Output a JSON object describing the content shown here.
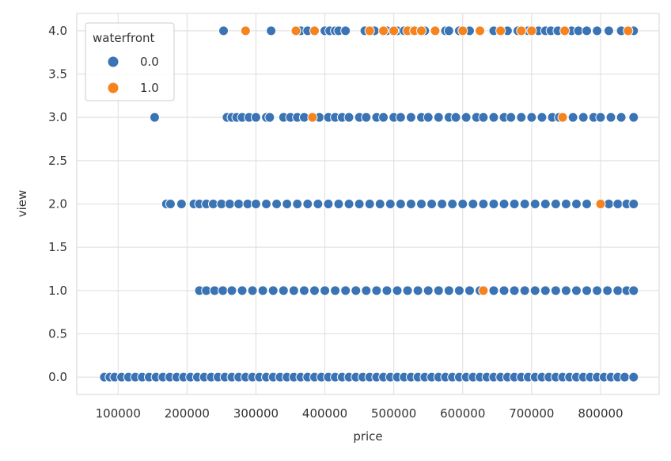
{
  "chart_data": {
    "type": "scatter",
    "title": "",
    "xlabel": "price",
    "ylabel": "view",
    "xlim": [
      40000,
      885000
    ],
    "ylim": [
      -0.2,
      4.2
    ],
    "x_ticks": [
      "100000",
      "200000",
      "300000",
      "400000",
      "500000",
      "600000",
      "700000",
      "800000"
    ],
    "y_ticks": [
      "0.0",
      "0.5",
      "1.0",
      "1.5",
      "2.0",
      "2.5",
      "3.0",
      "3.5",
      "4.0"
    ],
    "grid": true,
    "legend": {
      "title": "waterfront",
      "placement": "top-left",
      "entries": [
        "0.0",
        "1.0"
      ]
    },
    "colors": {
      "0.0": "#3a74b4",
      "1.0": "#f5841f"
    },
    "series": [
      {
        "name": "0.0",
        "points": [
          [
            253000,
            4
          ],
          [
            322000,
            4
          ],
          [
            365000,
            4
          ],
          [
            375000,
            4
          ],
          [
            400000,
            4
          ],
          [
            407000,
            4
          ],
          [
            415000,
            4
          ],
          [
            420000,
            4
          ],
          [
            430000,
            4
          ],
          [
            458000,
            4
          ],
          [
            472000,
            4
          ],
          [
            490000,
            4
          ],
          [
            505000,
            4
          ],
          [
            515000,
            4
          ],
          [
            525000,
            4
          ],
          [
            545000,
            4
          ],
          [
            575000,
            4
          ],
          [
            580000,
            4
          ],
          [
            595000,
            4
          ],
          [
            610000,
            4
          ],
          [
            645000,
            4
          ],
          [
            665000,
            4
          ],
          [
            680000,
            4
          ],
          [
            695000,
            4
          ],
          [
            710000,
            4
          ],
          [
            720000,
            4
          ],
          [
            728000,
            4
          ],
          [
            738000,
            4
          ],
          [
            758000,
            4
          ],
          [
            768000,
            4
          ],
          [
            780000,
            4
          ],
          [
            795000,
            4
          ],
          [
            812000,
            4
          ],
          [
            830000,
            4
          ],
          [
            848000,
            4
          ],
          [
            153000,
            3
          ],
          [
            258000,
            3
          ],
          [
            265000,
            3
          ],
          [
            272000,
            3
          ],
          [
            280000,
            3
          ],
          [
            290000,
            3
          ],
          [
            300000,
            3
          ],
          [
            315000,
            3
          ],
          [
            320000,
            3
          ],
          [
            340000,
            3
          ],
          [
            350000,
            3
          ],
          [
            360000,
            3
          ],
          [
            370000,
            3
          ],
          [
            392000,
            3
          ],
          [
            405000,
            3
          ],
          [
            415000,
            3
          ],
          [
            425000,
            3
          ],
          [
            435000,
            3
          ],
          [
            450000,
            3
          ],
          [
            460000,
            3
          ],
          [
            475000,
            3
          ],
          [
            485000,
            3
          ],
          [
            500000,
            3
          ],
          [
            510000,
            3
          ],
          [
            525000,
            3
          ],
          [
            540000,
            3
          ],
          [
            550000,
            3
          ],
          [
            565000,
            3
          ],
          [
            580000,
            3
          ],
          [
            590000,
            3
          ],
          [
            605000,
            3
          ],
          [
            620000,
            3
          ],
          [
            630000,
            3
          ],
          [
            645000,
            3
          ],
          [
            660000,
            3
          ],
          [
            670000,
            3
          ],
          [
            685000,
            3
          ],
          [
            700000,
            3
          ],
          [
            715000,
            3
          ],
          [
            730000,
            3
          ],
          [
            740000,
            3
          ],
          [
            760000,
            3
          ],
          [
            775000,
            3
          ],
          [
            790000,
            3
          ],
          [
            800000,
            3
          ],
          [
            815000,
            3
          ],
          [
            830000,
            3
          ],
          [
            848000,
            3
          ],
          [
            170000,
            2
          ],
          [
            176000,
            2
          ],
          [
            192000,
            2
          ],
          [
            210000,
            2
          ],
          [
            218000,
            2
          ],
          [
            228000,
            2
          ],
          [
            238000,
            2
          ],
          [
            250000,
            2
          ],
          [
            262000,
            2
          ],
          [
            275000,
            2
          ],
          [
            288000,
            2
          ],
          [
            300000,
            2
          ],
          [
            315000,
            2
          ],
          [
            330000,
            2
          ],
          [
            345000,
            2
          ],
          [
            360000,
            2
          ],
          [
            375000,
            2
          ],
          [
            390000,
            2
          ],
          [
            405000,
            2
          ],
          [
            420000,
            2
          ],
          [
            435000,
            2
          ],
          [
            450000,
            2
          ],
          [
            465000,
            2
          ],
          [
            480000,
            2
          ],
          [
            495000,
            2
          ],
          [
            510000,
            2
          ],
          [
            525000,
            2
          ],
          [
            540000,
            2
          ],
          [
            555000,
            2
          ],
          [
            570000,
            2
          ],
          [
            585000,
            2
          ],
          [
            600000,
            2
          ],
          [
            615000,
            2
          ],
          [
            630000,
            2
          ],
          [
            645000,
            2
          ],
          [
            660000,
            2
          ],
          [
            675000,
            2
          ],
          [
            690000,
            2
          ],
          [
            705000,
            2
          ],
          [
            720000,
            2
          ],
          [
            735000,
            2
          ],
          [
            750000,
            2
          ],
          [
            765000,
            2
          ],
          [
            780000,
            2
          ],
          [
            812000,
            2
          ],
          [
            825000,
            2
          ],
          [
            838000,
            2
          ],
          [
            848000,
            2
          ],
          [
            218000,
            1
          ],
          [
            228000,
            1
          ],
          [
            240000,
            1
          ],
          [
            252000,
            1
          ],
          [
            265000,
            1
          ],
          [
            280000,
            1
          ],
          [
            295000,
            1
          ],
          [
            310000,
            1
          ],
          [
            325000,
            1
          ],
          [
            340000,
            1
          ],
          [
            355000,
            1
          ],
          [
            370000,
            1
          ],
          [
            385000,
            1
          ],
          [
            400000,
            1
          ],
          [
            415000,
            1
          ],
          [
            430000,
            1
          ],
          [
            445000,
            1
          ],
          [
            460000,
            1
          ],
          [
            475000,
            1
          ],
          [
            490000,
            1
          ],
          [
            505000,
            1
          ],
          [
            520000,
            1
          ],
          [
            535000,
            1
          ],
          [
            550000,
            1
          ],
          [
            565000,
            1
          ],
          [
            580000,
            1
          ],
          [
            595000,
            1
          ],
          [
            610000,
            1
          ],
          [
            625000,
            1
          ],
          [
            645000,
            1
          ],
          [
            660000,
            1
          ],
          [
            675000,
            1
          ],
          [
            690000,
            1
          ],
          [
            705000,
            1
          ],
          [
            720000,
            1
          ],
          [
            735000,
            1
          ],
          [
            750000,
            1
          ],
          [
            765000,
            1
          ],
          [
            780000,
            1
          ],
          [
            795000,
            1
          ],
          [
            810000,
            1
          ],
          [
            825000,
            1
          ],
          [
            838000,
            1
          ],
          [
            848000,
            1
          ],
          [
            80000,
            0
          ],
          [
            88000,
            0
          ],
          [
            95000,
            0
          ],
          [
            105000,
            0
          ],
          [
            115000,
            0
          ],
          [
            125000,
            0
          ],
          [
            135000,
            0
          ],
          [
            145000,
            0
          ],
          [
            155000,
            0
          ],
          [
            165000,
            0
          ],
          [
            175000,
            0
          ],
          [
            185000,
            0
          ],
          [
            195000,
            0
          ],
          [
            205000,
            0
          ],
          [
            215000,
            0
          ],
          [
            225000,
            0
          ],
          [
            235000,
            0
          ],
          [
            245000,
            0
          ],
          [
            255000,
            0
          ],
          [
            265000,
            0
          ],
          [
            275000,
            0
          ],
          [
            285000,
            0
          ],
          [
            295000,
            0
          ],
          [
            305000,
            0
          ],
          [
            315000,
            0
          ],
          [
            325000,
            0
          ],
          [
            335000,
            0
          ],
          [
            345000,
            0
          ],
          [
            355000,
            0
          ],
          [
            365000,
            0
          ],
          [
            375000,
            0
          ],
          [
            385000,
            0
          ],
          [
            395000,
            0
          ],
          [
            405000,
            0
          ],
          [
            415000,
            0
          ],
          [
            425000,
            0
          ],
          [
            435000,
            0
          ],
          [
            445000,
            0
          ],
          [
            455000,
            0
          ],
          [
            465000,
            0
          ],
          [
            475000,
            0
          ],
          [
            485000,
            0
          ],
          [
            495000,
            0
          ],
          [
            505000,
            0
          ],
          [
            515000,
            0
          ],
          [
            525000,
            0
          ],
          [
            535000,
            0
          ],
          [
            545000,
            0
          ],
          [
            555000,
            0
          ],
          [
            565000,
            0
          ],
          [
            575000,
            0
          ],
          [
            585000,
            0
          ],
          [
            595000,
            0
          ],
          [
            605000,
            0
          ],
          [
            615000,
            0
          ],
          [
            625000,
            0
          ],
          [
            635000,
            0
          ],
          [
            645000,
            0
          ],
          [
            655000,
            0
          ],
          [
            665000,
            0
          ],
          [
            675000,
            0
          ],
          [
            685000,
            0
          ],
          [
            695000,
            0
          ],
          [
            705000,
            0
          ],
          [
            715000,
            0
          ],
          [
            725000,
            0
          ],
          [
            735000,
            0
          ],
          [
            745000,
            0
          ],
          [
            755000,
            0
          ],
          [
            765000,
            0
          ],
          [
            775000,
            0
          ],
          [
            785000,
            0
          ],
          [
            795000,
            0
          ],
          [
            805000,
            0
          ],
          [
            815000,
            0
          ],
          [
            825000,
            0
          ],
          [
            835000,
            0
          ],
          [
            848000,
            0
          ]
        ]
      },
      {
        "name": "1.0",
        "points": [
          [
            285000,
            4
          ],
          [
            358000,
            4
          ],
          [
            385000,
            4
          ],
          [
            465000,
            4
          ],
          [
            485000,
            4
          ],
          [
            500000,
            4
          ],
          [
            520000,
            4
          ],
          [
            530000,
            4
          ],
          [
            540000,
            4
          ],
          [
            560000,
            4
          ],
          [
            600000,
            4
          ],
          [
            625000,
            4
          ],
          [
            655000,
            4
          ],
          [
            685000,
            4
          ],
          [
            700000,
            4
          ],
          [
            748000,
            4
          ],
          [
            840000,
            4
          ],
          [
            382000,
            3
          ],
          [
            745000,
            3
          ],
          [
            800000,
            2
          ],
          [
            630000,
            1
          ]
        ]
      }
    ]
  }
}
